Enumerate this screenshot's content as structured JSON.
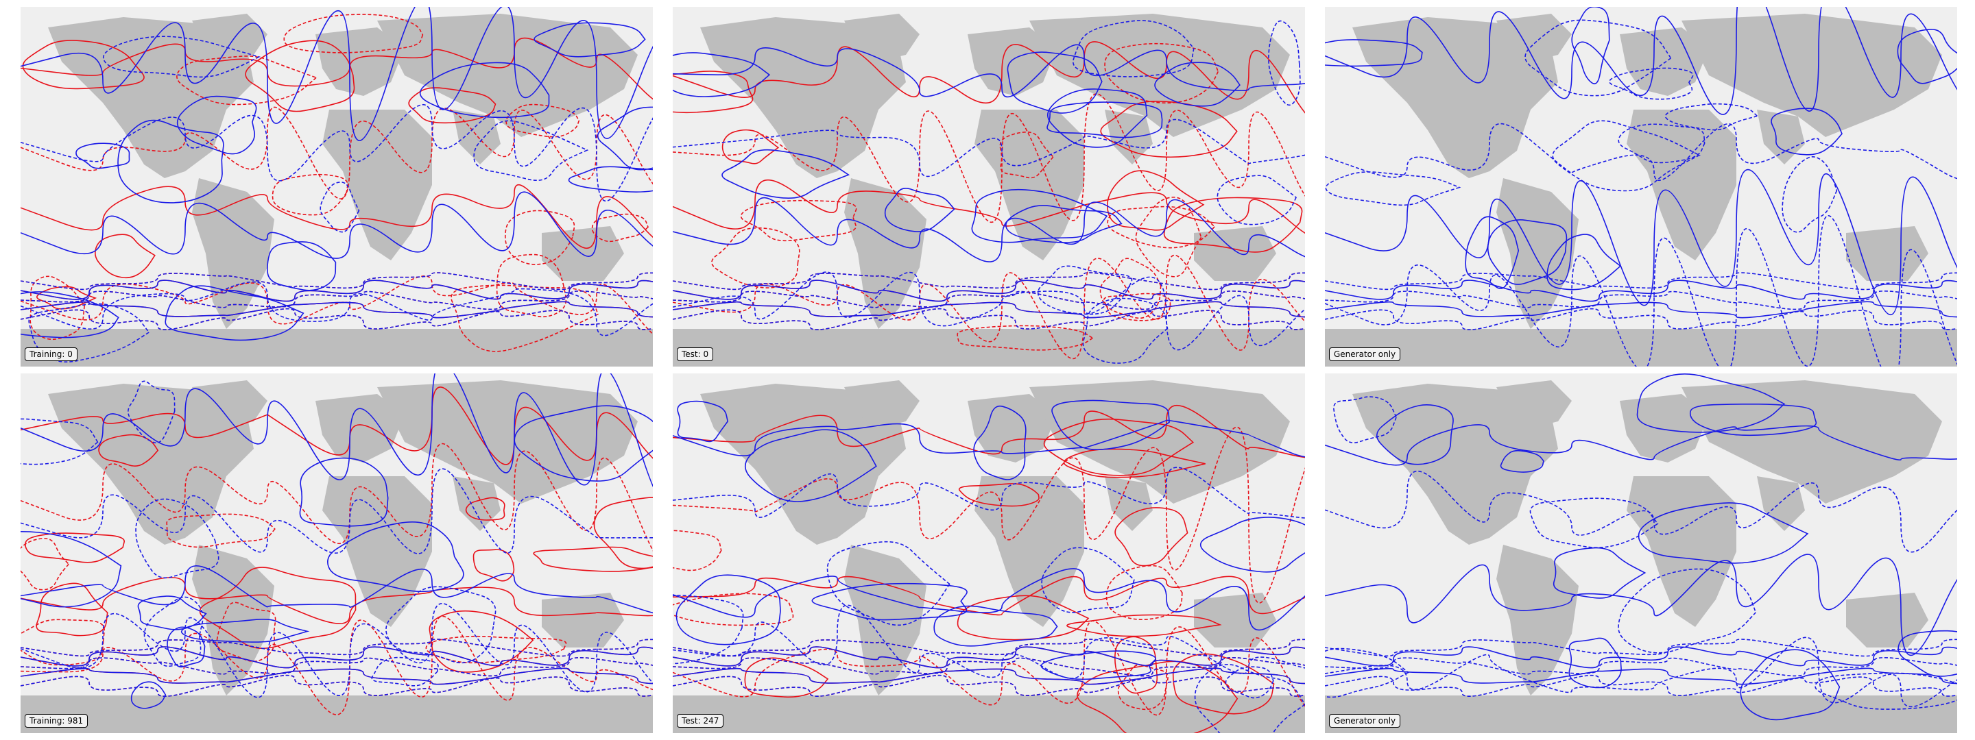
{
  "colors": {
    "background": "#ffffff",
    "ocean": "#efefef",
    "land": "#bdbdbd",
    "contour_red": "#e8111a",
    "contour_blue": "#1a1ae6"
  },
  "panels": [
    {
      "label": "Training: 0",
      "series": [
        "red",
        "blue"
      ]
    },
    {
      "label": "Test: 0",
      "series": [
        "red",
        "blue"
      ]
    },
    {
      "label": "Generator only",
      "series": [
        "blue"
      ]
    },
    {
      "label": "Training: 981",
      "series": [
        "red",
        "blue"
      ]
    },
    {
      "label": "Test: 247",
      "series": [
        "red",
        "blue"
      ]
    },
    {
      "label": "Generator only",
      "series": [
        "blue"
      ]
    }
  ]
}
